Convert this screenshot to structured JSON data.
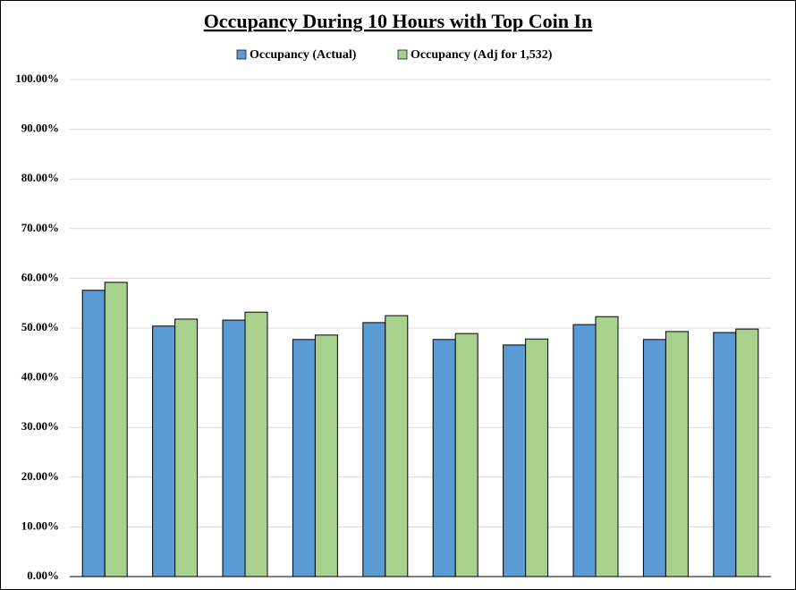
{
  "chart_data": {
    "type": "bar",
    "title": "Occupancy During 10 Hours with Top Coin In",
    "categories": [
      null,
      null,
      null,
      null,
      null,
      null,
      null,
      null,
      null,
      null
    ],
    "series": [
      {
        "name": "Occupancy (Actual)",
        "color": "#5b9bd5",
        "values": [
          57.6,
          50.4,
          51.6,
          47.7,
          51.1,
          47.7,
          46.6,
          50.7,
          47.7,
          49.1
        ]
      },
      {
        "name": "Occupancy (Adj for 1,532)",
        "color": "#a9d18e",
        "values": [
          59.2,
          51.8,
          53.2,
          48.6,
          52.5,
          48.9,
          47.8,
          52.3,
          49.3,
          49.8
        ]
      }
    ],
    "ylim": [
      0,
      100
    ],
    "yticks": [
      {
        "value": 0,
        "label": "0.00%"
      },
      {
        "value": 10,
        "label": "10.00%"
      },
      {
        "value": 20,
        "label": "20.00%"
      },
      {
        "value": 30,
        "label": "30.00%"
      },
      {
        "value": 40,
        "label": "40.00%"
      },
      {
        "value": 50,
        "label": "50.00%"
      },
      {
        "value": 60,
        "label": "60.00%"
      },
      {
        "value": 70,
        "label": "70.00%"
      },
      {
        "value": 80,
        "label": "80.00%"
      },
      {
        "value": 90,
        "label": "90.00%"
      },
      {
        "value": 100,
        "label": "100.00%"
      }
    ],
    "grid": true,
    "legend": "top"
  }
}
